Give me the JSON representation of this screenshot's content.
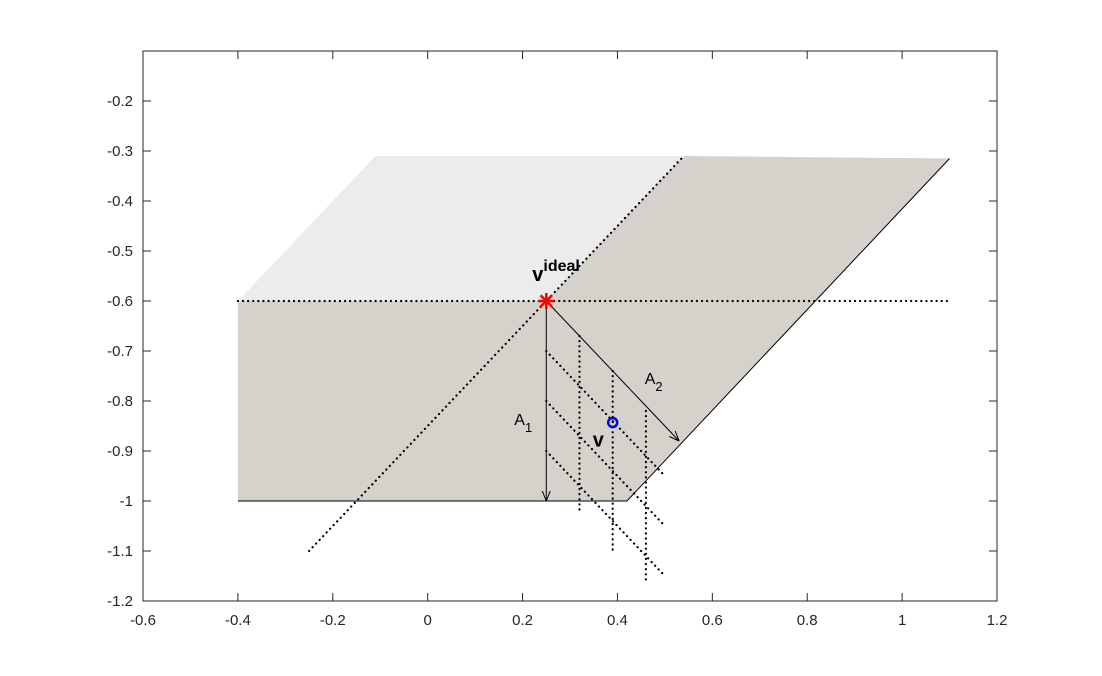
{
  "chart_data": {
    "type": "geometry",
    "xlim": [
      -0.6,
      1.2
    ],
    "ylim": [
      -1.2,
      -0.1
    ],
    "xticks": [
      -0.6,
      -0.4,
      -0.2,
      0,
      0.2,
      0.4,
      0.6,
      0.8,
      1,
      1.2
    ],
    "yticks": [
      -1.2,
      -1.1,
      -1,
      -0.9,
      -0.8,
      -0.7,
      -0.6,
      -0.5,
      -0.4,
      -0.3,
      -0.2
    ],
    "regions": [
      {
        "color": "#ececec",
        "x": [
          -0.4,
          -0.11,
          0.54,
          0.25
        ],
        "y": [
          -0.6,
          -0.31,
          -0.31,
          -0.6
        ]
      },
      {
        "color": "#d5d1cb",
        "x": [
          -0.4,
          0.25,
          0.54,
          1.1,
          0.42,
          -0.4
        ],
        "y": [
          -0.6,
          -0.6,
          -0.31,
          -0.315,
          -1,
          -1
        ]
      }
    ],
    "edges": [
      {
        "x": [
          1.1,
          0.42,
          -0.4
        ],
        "y": [
          -0.315,
          -1,
          -1
        ]
      }
    ],
    "dotted": [
      {
        "x": [
          -0.4,
          1.1
        ],
        "y": [
          -0.6,
          -0.6
        ]
      },
      {
        "x": [
          -0.25,
          0.54
        ],
        "y": [
          -1.1,
          -0.31
        ]
      },
      {
        "x": [
          0.32,
          0.32
        ],
        "y": [
          -0.67,
          -1.02
        ]
      },
      {
        "x": [
          0.39,
          0.39
        ],
        "y": [
          -0.74,
          -1.1
        ]
      },
      {
        "x": [
          0.46,
          0.46
        ],
        "y": [
          -0.82,
          -1.16
        ]
      },
      {
        "x": [
          0.25,
          0.5
        ],
        "y": [
          -0.7,
          -0.95
        ]
      },
      {
        "x": [
          0.25,
          0.5
        ],
        "y": [
          -0.8,
          -1.05
        ]
      },
      {
        "x": [
          0.25,
          0.5
        ],
        "y": [
          -0.9,
          -1.15
        ]
      }
    ],
    "arrows": [
      {
        "x": [
          0.25,
          0.25
        ],
        "y": [
          -0.6,
          -1
        ]
      },
      {
        "x": [
          0.25,
          0.53
        ],
        "y": [
          -0.6,
          -0.88
        ]
      }
    ],
    "points": [
      {
        "marker": "star",
        "color": "#ff0000",
        "x": 0.25,
        "y": -0.6
      },
      {
        "marker": "circle",
        "color": "#0000ff",
        "x": 0.39,
        "y": -0.843
      }
    ],
    "labels": [
      {
        "text": "v",
        "sup": "ideal"
      },
      {
        "text": "A",
        "sub": "1"
      },
      {
        "text": "A",
        "sub": "2"
      },
      {
        "text": "v"
      }
    ]
  }
}
